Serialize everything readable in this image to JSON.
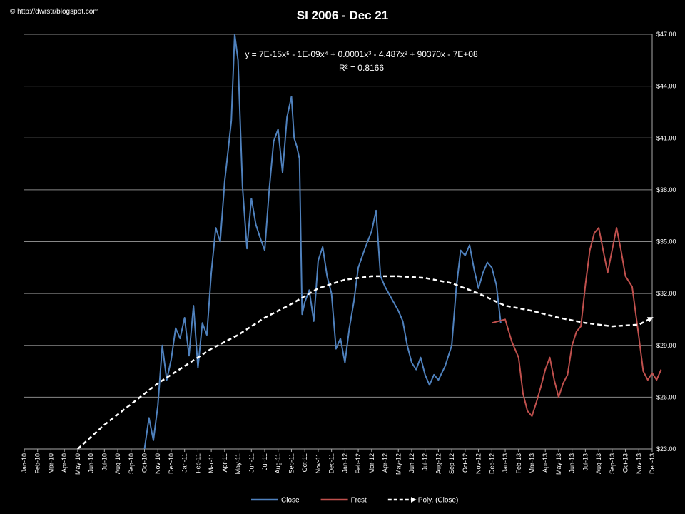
{
  "copyright": "© http://dwrstr/blogspot.com",
  "equation": {
    "line1": "y = 7E-15x⁵ - 1E-09x⁴ + 0.0001x³ - 4.487x² + 90370x - 7E+08",
    "line2": "R² = 0.8166"
  },
  "colors": {
    "close": "#4f81bd",
    "frcst": "#c0504d",
    "poly": "#ffffff",
    "background": "#000000",
    "grid": "#888888"
  },
  "chart_data": {
    "type": "line",
    "title": "SI 2006 - Dec 21",
    "x_axis": {
      "ticks": [
        "Jan-10",
        "Feb-10",
        "Mar-10",
        "Apr-10",
        "May-10",
        "Jun-10",
        "Jul-10",
        "Aug-10",
        "Sep-10",
        "Oct-10",
        "Nov-10",
        "Dec-10",
        "Jan-11",
        "Feb-11",
        "Mar-11",
        "Apr-11",
        "May-11",
        "Jun-11",
        "Jul-11",
        "Aug-11",
        "Sep-11",
        "Oct-11",
        "Nov-11",
        "Dec-11",
        "Jan-12",
        "Feb-12",
        "Mar-12",
        "Apr-12",
        "May-12",
        "Jun-12",
        "Jul-12",
        "Aug-12",
        "Sep-12",
        "Oct-12",
        "Nov-12",
        "Dec-12",
        "Jan-13",
        "Feb-13",
        "Mar-13",
        "Apr-13",
        "May-13",
        "Jun-13",
        "Jul-13",
        "Aug-13",
        "Sep-13",
        "Oct-13",
        "Nov-13",
        "Dec-13"
      ],
      "range": [
        "Jan-10",
        "Dec-13"
      ]
    },
    "y_axis": {
      "ticks": [
        "$23.00",
        "$26.00",
        "$29.00",
        "$32.00",
        "$35.00",
        "$38.00",
        "$41.00",
        "$44.00",
        "$47.00"
      ],
      "min": 23,
      "max": 47,
      "step": 3,
      "position": "right"
    },
    "grid": true,
    "legend_position": "bottom",
    "series": [
      {
        "name": "Close",
        "points": [
          [
            "Oct-10",
            23.0
          ],
          [
            "Oct-10",
            24.8
          ],
          [
            "Oct-10",
            23.5
          ],
          [
            "Nov-10",
            25.5
          ],
          [
            "Nov-10",
            29.0
          ],
          [
            "Nov-10",
            27.0
          ],
          [
            "Dec-10",
            28.2
          ],
          [
            "Dec-10",
            30.0
          ],
          [
            "Dec-10",
            29.4
          ],
          [
            "Jan-11",
            30.6
          ],
          [
            "Jan-11",
            28.4
          ],
          [
            "Jan-11",
            31.3
          ],
          [
            "Feb-11",
            27.7
          ],
          [
            "Feb-11",
            30.3
          ],
          [
            "Feb-11",
            29.6
          ],
          [
            "Mar-11",
            33.2
          ],
          [
            "Mar-11",
            35.8
          ],
          [
            "Mar-11",
            35.0
          ],
          [
            "Apr-11",
            38.5
          ],
          [
            "Apr-11",
            40.2
          ],
          [
            "Apr-11",
            42.0
          ],
          [
            "Apr-11",
            47.0
          ],
          [
            "May-11",
            45.5
          ],
          [
            "May-11",
            38.2
          ],
          [
            "May-11",
            34.6
          ],
          [
            "Jun-11",
            37.5
          ],
          [
            "Jun-11",
            36.0
          ],
          [
            "Jun-11",
            35.2
          ],
          [
            "Jul-11",
            34.5
          ],
          [
            "Jul-11",
            38.0
          ],
          [
            "Jul-11",
            40.8
          ],
          [
            "Aug-11",
            41.5
          ],
          [
            "Aug-11",
            39.0
          ],
          [
            "Aug-11",
            42.2
          ],
          [
            "Sep-11",
            43.4
          ],
          [
            "Sep-11",
            41.0
          ],
          [
            "Sep-11",
            40.5
          ],
          [
            "Sep-11",
            39.8
          ],
          [
            "Sep-11",
            30.8
          ],
          [
            "Oct-11",
            31.5
          ],
          [
            "Oct-11",
            32.2
          ],
          [
            "Oct-11",
            30.4
          ],
          [
            "Nov-11",
            33.9
          ],
          [
            "Nov-11",
            34.7
          ],
          [
            "Nov-11",
            33.0
          ],
          [
            "Dec-11",
            32.0
          ],
          [
            "Dec-11",
            28.8
          ],
          [
            "Dec-11",
            29.4
          ],
          [
            "Jan-12",
            28.0
          ],
          [
            "Jan-12",
            30.0
          ],
          [
            "Jan-12",
            31.5
          ],
          [
            "Feb-12",
            33.5
          ],
          [
            "Feb-12",
            34.6
          ],
          [
            "Mar-12",
            35.6
          ],
          [
            "Mar-12",
            36.8
          ],
          [
            "Mar-12",
            33.0
          ],
          [
            "Apr-12",
            32.4
          ],
          [
            "Apr-12",
            31.7
          ],
          [
            "May-12",
            31.0
          ],
          [
            "May-12",
            30.4
          ],
          [
            "May-12",
            29.0
          ],
          [
            "Jun-12",
            28.0
          ],
          [
            "Jun-12",
            27.6
          ],
          [
            "Jun-12",
            28.3
          ],
          [
            "Jul-12",
            27.3
          ],
          [
            "Jul-12",
            26.7
          ],
          [
            "Jul-12",
            27.3
          ],
          [
            "Aug-12",
            27.0
          ],
          [
            "Aug-12",
            27.8
          ],
          [
            "Sep-12",
            29.0
          ],
          [
            "Sep-12",
            32.3
          ],
          [
            "Sep-12",
            34.5
          ],
          [
            "Oct-12",
            34.2
          ],
          [
            "Oct-12",
            34.8
          ],
          [
            "Oct-12",
            33.4
          ],
          [
            "Nov-12",
            32.3
          ],
          [
            "Nov-12",
            33.2
          ],
          [
            "Nov-12",
            33.8
          ],
          [
            "Dec-12",
            33.5
          ],
          [
            "Dec-12",
            32.5
          ],
          [
            "Dec-12",
            30.3
          ]
        ]
      },
      {
        "name": "Frcst",
        "points": [
          [
            "Dec-12",
            30.3
          ],
          [
            "Jan-13",
            30.5
          ],
          [
            "Jan-13",
            29.2
          ],
          [
            "Feb-13",
            28.3
          ],
          [
            "Feb-13",
            26.2
          ],
          [
            "Feb-13",
            25.2
          ],
          [
            "Mar-13",
            24.9
          ],
          [
            "Mar-13",
            25.7
          ],
          [
            "Mar-13",
            26.6
          ],
          [
            "Apr-13",
            27.6
          ],
          [
            "Apr-13",
            28.3
          ],
          [
            "Apr-13",
            27.0
          ],
          [
            "May-13",
            26.0
          ],
          [
            "May-13",
            26.8
          ],
          [
            "May-13",
            27.3
          ],
          [
            "Jun-13",
            29.0
          ],
          [
            "Jun-13",
            29.8
          ],
          [
            "Jun-13",
            30.1
          ],
          [
            "Jul-13",
            32.5
          ],
          [
            "Jul-13",
            34.5
          ],
          [
            "Jul-13",
            35.5
          ],
          [
            "Aug-13",
            35.8
          ],
          [
            "Aug-13",
            34.5
          ],
          [
            "Aug-13",
            33.2
          ],
          [
            "Sep-13",
            34.5
          ],
          [
            "Sep-13",
            35.8
          ],
          [
            "Sep-13",
            34.5
          ],
          [
            "Oct-13",
            33.0
          ],
          [
            "Oct-13",
            32.4
          ],
          [
            "Nov-13",
            29.5
          ],
          [
            "Nov-13",
            27.5
          ],
          [
            "Nov-13",
            27.0
          ],
          [
            "Dec-13",
            27.4
          ],
          [
            "Dec-13",
            27.0
          ],
          [
            "Dec-13",
            27.6
          ]
        ]
      },
      {
        "name": "Poly. (Close)",
        "style": "dashed-arrow",
        "points": [
          [
            "May-10",
            23.0
          ],
          [
            "Jul-10",
            24.4
          ],
          [
            "Sep-10",
            25.6
          ],
          [
            "Nov-10",
            26.8
          ],
          [
            "Jan-11",
            27.8
          ],
          [
            "Mar-11",
            28.8
          ],
          [
            "May-11",
            29.6
          ],
          [
            "Jul-11",
            30.6
          ],
          [
            "Sep-11",
            31.4
          ],
          [
            "Nov-11",
            32.3
          ],
          [
            "Jan-12",
            32.8
          ],
          [
            "Mar-12",
            33.0
          ],
          [
            "May-12",
            33.0
          ],
          [
            "Jul-12",
            32.9
          ],
          [
            "Sep-12",
            32.6
          ],
          [
            "Nov-12",
            32.0
          ],
          [
            "Jan-13",
            31.3
          ],
          [
            "Mar-13",
            31.0
          ],
          [
            "May-13",
            30.6
          ],
          [
            "Jul-13",
            30.3
          ],
          [
            "Sep-13",
            30.1
          ],
          [
            "Nov-13",
            30.2
          ],
          [
            "Dec-13",
            30.6
          ]
        ]
      }
    ]
  }
}
